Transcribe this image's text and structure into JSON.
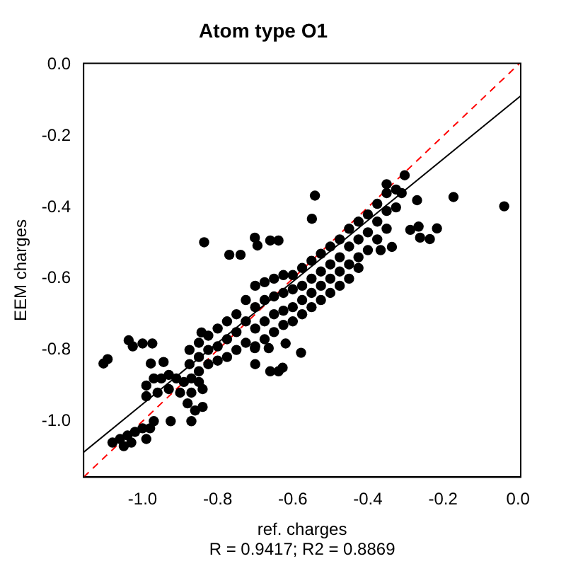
{
  "chart_data": {
    "type": "scatter",
    "title": "Atom type O1",
    "xlabel": "ref. charges",
    "ylabel": "EEM charges",
    "annotations": [
      "R = 0.9417; R2 = 0.8869"
    ],
    "xlim": [
      -1.157,
      0.007
    ],
    "ylim": [
      -1.157,
      0.004
    ],
    "xticks": [
      {
        "value": -1,
        "label": "-1.0"
      },
      {
        "value": -0.8,
        "label": "-0.8"
      },
      {
        "value": -0.6,
        "label": "-0.6"
      },
      {
        "value": -0.4,
        "label": "-0.4"
      },
      {
        "value": -0.2,
        "label": "-0.2"
      },
      {
        "value": 0,
        "label": "0.0"
      }
    ],
    "yticks": [
      {
        "value": -1,
        "label": "-1.0"
      },
      {
        "value": -0.8,
        "label": "-0.8"
      },
      {
        "value": -0.6,
        "label": "-0.6"
      },
      {
        "value": -0.4,
        "label": "-0.4"
      },
      {
        "value": -0.2,
        "label": "-0.2"
      },
      {
        "value": 0,
        "label": "0.0"
      }
    ],
    "grid": false,
    "legend": false,
    "marker": "circle",
    "series": [
      {
        "type": "scatter",
        "color": "#000000",
        "x": [
          -0.875,
          -0.875,
          -0.85,
          -0.85,
          -0.85,
          -0.825,
          -0.825,
          -0.825,
          -0.8,
          -0.8,
          -0.8,
          -0.775,
          -0.775,
          -0.775,
          -0.75,
          -0.75,
          -0.75,
          -0.725,
          -0.725,
          -0.725,
          -0.7,
          -0.7,
          -0.7,
          -0.7,
          -0.675,
          -0.675,
          -0.675,
          -0.675,
          -0.65,
          -0.65,
          -0.65,
          -0.65,
          -0.625,
          -0.625,
          -0.625,
          -0.625,
          -0.6,
          -0.6,
          -0.6,
          -0.6,
          -0.575,
          -0.575,
          -0.575,
          -0.575,
          -0.55,
          -0.55,
          -0.55,
          -0.55,
          -0.525,
          -0.525,
          -0.525,
          -0.525,
          -0.5,
          -0.5,
          -0.5,
          -0.5,
          -0.475,
          -0.475,
          -0.475,
          -0.475,
          -0.45,
          -0.45,
          -0.45,
          -0.45,
          -0.425,
          -0.425,
          -0.425,
          -0.425,
          -0.4,
          -0.4,
          -0.4,
          -0.375,
          -0.375,
          -0.375,
          -0.35,
          -0.35,
          -0.35,
          -0.325,
          -0.325,
          -0.99,
          -0.97,
          -0.95,
          -0.93,
          -0.91,
          -0.89,
          -0.87,
          -0.85,
          -0.99,
          -0.96,
          -0.93,
          -0.9,
          -0.87,
          -0.84,
          -0.88,
          -0.86,
          -0.84,
          -0.87,
          -0.925,
          -1.08,
          -1.06,
          -1.04,
          -1.02,
          -1.0,
          -0.98,
          -0.97,
          -1.05,
          -1.03,
          -0.99,
          -1.104,
          -1.093,
          -1.037,
          -1.026,
          -1.0,
          -0.974,
          -0.836,
          -0.769,
          -0.739,
          -0.701,
          -0.694,
          -0.66,
          -0.978,
          -0.944,
          -0.843,
          -0.701,
          -0.7,
          -0.66,
          -0.627,
          -0.302,
          -0.541,
          -0.269,
          -0.172,
          -0.037,
          -0.216,
          -0.235,
          -0.261,
          -0.265,
          -0.287,
          -0.336,
          -0.366,
          -0.549,
          -0.619,
          -0.578,
          -0.664,
          -0.638,
          -0.638,
          -0.35,
          -0.31
        ],
        "values": [
          -0.8,
          -0.84,
          -0.78,
          -0.82,
          -0.86,
          -0.76,
          -0.8,
          -0.84,
          -0.74,
          -0.79,
          -0.83,
          -0.72,
          -0.77,
          -0.82,
          -0.7,
          -0.75,
          -0.8,
          -0.66,
          -0.72,
          -0.78,
          -0.62,
          -0.68,
          -0.74,
          -0.79,
          -0.61,
          -0.66,
          -0.72,
          -0.77,
          -0.6,
          -0.65,
          -0.7,
          -0.75,
          -0.59,
          -0.64,
          -0.69,
          -0.73,
          -0.59,
          -0.63,
          -0.68,
          -0.72,
          -0.57,
          -0.62,
          -0.66,
          -0.7,
          -0.55,
          -0.6,
          -0.64,
          -0.68,
          -0.53,
          -0.58,
          -0.62,
          -0.66,
          -0.51,
          -0.56,
          -0.6,
          -0.64,
          -0.49,
          -0.54,
          -0.58,
          -0.62,
          -0.46,
          -0.51,
          -0.56,
          -0.6,
          -0.44,
          -0.49,
          -0.54,
          -0.57,
          -0.42,
          -0.47,
          -0.52,
          -0.39,
          -0.44,
          -0.49,
          -0.36,
          -0.41,
          -0.46,
          -0.35,
          -0.4,
          -0.9,
          -0.88,
          -0.88,
          -0.87,
          -0.88,
          -0.89,
          -0.88,
          -0.89,
          -0.93,
          -0.92,
          -0.91,
          -0.92,
          -0.92,
          -0.91,
          -0.95,
          -0.97,
          -0.96,
          -1.0,
          -1.0,
          -1.06,
          -1.05,
          -1.04,
          -1.03,
          -1.02,
          -1.02,
          -1.0,
          -1.07,
          -1.06,
          -1.05,
          -0.838,
          -0.826,
          -0.773,
          -0.79,
          -0.782,
          -0.782,
          -0.498,
          -0.533,
          -0.533,
          -0.485,
          -0.507,
          -0.493,
          -0.838,
          -0.834,
          -0.751,
          -0.795,
          -0.84,
          -0.86,
          -0.85,
          -0.31,
          -0.367,
          -0.38,
          -0.371,
          -0.397,
          -0.459,
          -0.489,
          -0.485,
          -0.454,
          -0.463,
          -0.511,
          -0.52,
          -0.432,
          -0.782,
          -0.808,
          -0.795,
          -0.86,
          -0.493,
          -0.335,
          -0.36
        ]
      },
      {
        "type": "line",
        "color": "#000000",
        "line_style": "solid",
        "marker": "none",
        "x": [
          -1.157,
          0.007
        ],
        "values": [
          -1.087,
          -0.087
        ]
      },
      {
        "type": "line",
        "color": "#ff0000",
        "line_style": "dashed",
        "marker": "none",
        "x": [
          -1.157,
          0.004
        ],
        "values": [
          -1.157,
          0.004
        ]
      }
    ]
  }
}
